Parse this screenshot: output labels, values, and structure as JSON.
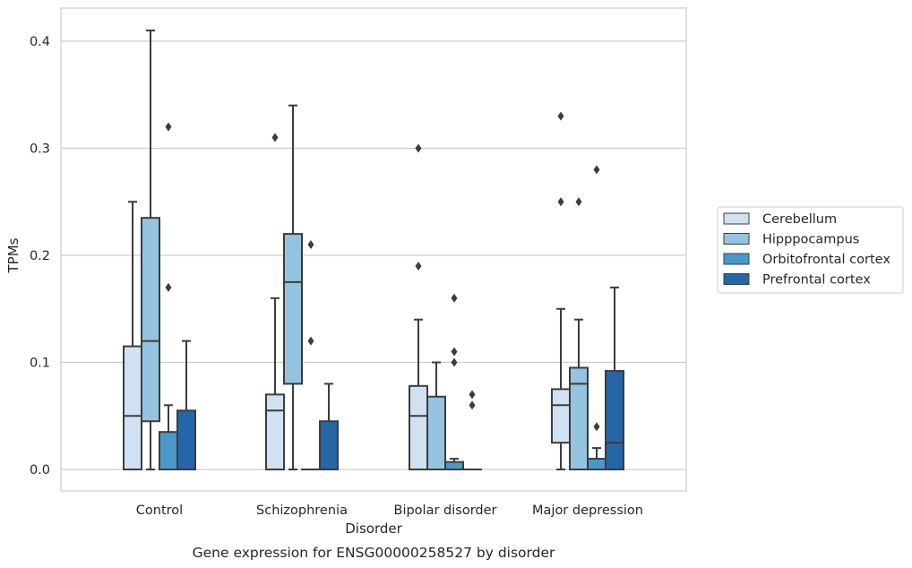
{
  "chart_data": {
    "type": "boxplot",
    "title": "",
    "caption": "Gene expression for ENSG00000258527 by disorder",
    "xlabel": "Disorder",
    "ylabel": "TPMs",
    "ylim": [
      -0.02,
      0.43
    ],
    "yticks": [
      0.0,
      0.1,
      0.2,
      0.3,
      0.4
    ],
    "ytick_labels": [
      "0.0",
      "0.1",
      "0.2",
      "0.3",
      "0.4"
    ],
    "grid": "horizontal",
    "legend_position": "right",
    "categories": [
      "Control",
      "Schizophrenia",
      "Bipolar disorder",
      "Major depression"
    ],
    "series": [
      {
        "name": "Cerebellum",
        "color": "#d0e1f2",
        "boxes": [
          {
            "whisker_low": 0.0,
            "q1": 0.0,
            "median": 0.05,
            "q3": 0.115,
            "whisker_high": 0.25,
            "outliers": []
          },
          {
            "whisker_low": 0.0,
            "q1": 0.0,
            "median": 0.055,
            "q3": 0.07,
            "whisker_high": 0.16,
            "outliers": [
              0.31
            ]
          },
          {
            "whisker_low": 0.0,
            "q1": 0.0,
            "median": 0.05,
            "q3": 0.078,
            "whisker_high": 0.14,
            "outliers": [
              0.19,
              0.3
            ]
          },
          {
            "whisker_low": 0.0,
            "q1": 0.025,
            "median": 0.06,
            "q3": 0.075,
            "whisker_high": 0.15,
            "outliers": [
              0.25,
              0.33
            ]
          }
        ]
      },
      {
        "name": "Hipppocampus",
        "color": "#94c4df",
        "boxes": [
          {
            "whisker_low": 0.0,
            "q1": 0.045,
            "median": 0.12,
            "q3": 0.235,
            "whisker_high": 0.41,
            "outliers": []
          },
          {
            "whisker_low": 0.0,
            "q1": 0.08,
            "median": 0.175,
            "q3": 0.22,
            "whisker_high": 0.34,
            "outliers": []
          },
          {
            "whisker_low": 0.0,
            "q1": 0.0,
            "median": 0.0,
            "q3": 0.068,
            "whisker_high": 0.1,
            "outliers": []
          },
          {
            "whisker_low": 0.0,
            "q1": 0.0,
            "median": 0.08,
            "q3": 0.095,
            "whisker_high": 0.14,
            "outliers": [
              0.25
            ]
          }
        ]
      },
      {
        "name": "Orbitofrontal cortex",
        "color": "#4a98c9",
        "boxes": [
          {
            "whisker_low": 0.0,
            "q1": 0.0,
            "median": 0.0,
            "q3": 0.035,
            "whisker_high": 0.06,
            "outliers": [
              0.17,
              0.32
            ]
          },
          {
            "whisker_low": 0.0,
            "q1": 0.0,
            "median": 0.0,
            "q3": 0.0,
            "whisker_high": 0.0,
            "outliers": [
              0.12,
              0.21
            ]
          },
          {
            "whisker_low": 0.0,
            "q1": 0.0,
            "median": 0.0,
            "q3": 0.007,
            "whisker_high": 0.01,
            "outliers": [
              0.1,
              0.11,
              0.16
            ]
          },
          {
            "whisker_low": 0.0,
            "q1": 0.0,
            "median": 0.0,
            "q3": 0.01,
            "whisker_high": 0.02,
            "outliers": [
              0.04,
              0.28
            ]
          }
        ]
      },
      {
        "name": "Prefrontal cortex",
        "color": "#2566a8",
        "boxes": [
          {
            "whisker_low": 0.0,
            "q1": 0.0,
            "median": 0.0,
            "q3": 0.055,
            "whisker_high": 0.12,
            "outliers": []
          },
          {
            "whisker_low": 0.0,
            "q1": 0.0,
            "median": 0.0,
            "q3": 0.045,
            "whisker_high": 0.08,
            "outliers": []
          },
          {
            "whisker_low": 0.0,
            "q1": 0.0,
            "median": 0.0,
            "q3": 0.0,
            "whisker_high": 0.0,
            "outliers": [
              0.06,
              0.07
            ]
          },
          {
            "whisker_low": 0.0,
            "q1": 0.0,
            "median": 0.025,
            "q3": 0.092,
            "whisker_high": 0.17,
            "outliers": []
          }
        ]
      }
    ]
  }
}
